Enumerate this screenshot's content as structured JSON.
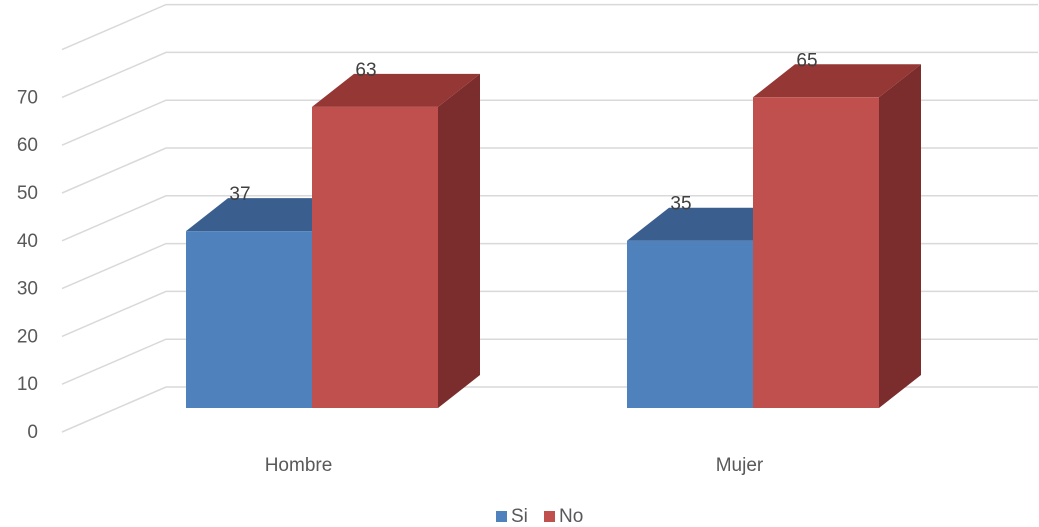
{
  "chart_data": {
    "type": "bar",
    "style": "3d-clustered-column",
    "categories": [
      "Hombre",
      "Mujer"
    ],
    "series": [
      {
        "name": "Si",
        "values": [
          37,
          35
        ],
        "color": "#4F81BD",
        "top_color": "#3A5F8F",
        "side_color": "#2F4F7A"
      },
      {
        "name": "No",
        "values": [
          63,
          65
        ],
        "color": "#C0504D",
        "top_color": "#953735",
        "side_color": "#7B2C2C"
      }
    ],
    "y_ticks": [
      "0",
      "10",
      "20",
      "30",
      "40",
      "50",
      "60",
      "70"
    ],
    "ylim": [
      0,
      80
    ],
    "grid": true,
    "legend_position": "bottom",
    "data_labels": true
  }
}
